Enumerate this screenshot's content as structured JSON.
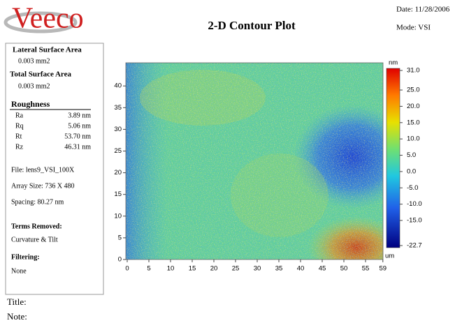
{
  "header": {
    "logo": "Veeco",
    "title": "2-D Contour Plot",
    "date": "Date: 11/28/2006",
    "mode": "Mode: VSI"
  },
  "panel": {
    "lateral_label": "Lateral Surface Area",
    "lateral_value": "0.003 mm2",
    "total_label": "Total Surface Area",
    "total_value": "0.003 mm2",
    "roughness_label": "Roughness",
    "roughness": [
      [
        "Ra",
        "3.89 nm"
      ],
      [
        "Rq",
        "5.06 nm"
      ],
      [
        "Rt",
        "53.70 nm"
      ],
      [
        "Rz",
        "46.31 nm"
      ]
    ],
    "file": "File: lens9_VSI_100X",
    "array_size": "Array Size: 736 X 480",
    "spacing": "Spacing: 80.27 nm",
    "terms_label": "Terms Removed:",
    "terms": "Curvature & Tilt",
    "filtering_label": "Filtering:",
    "filtering": "None"
  },
  "plot": {
    "x_ticks": [
      0,
      5,
      10,
      15,
      20,
      25,
      30,
      35,
      40,
      45,
      50,
      55,
      59
    ],
    "y_ticks": [
      0,
      5,
      10,
      15,
      20,
      25,
      30,
      35,
      40
    ],
    "x_unit": "um",
    "colorbar_unit": "nm",
    "colorbar_ticks": [
      "31.0",
      "25.0",
      "20.0",
      "15.0",
      "10.0",
      "5.0",
      "0.0",
      "-5.0",
      "-10.0",
      "-15.0",
      "-22.7"
    ]
  },
  "footer": {
    "title": "Title:",
    "note": "Note:"
  }
}
